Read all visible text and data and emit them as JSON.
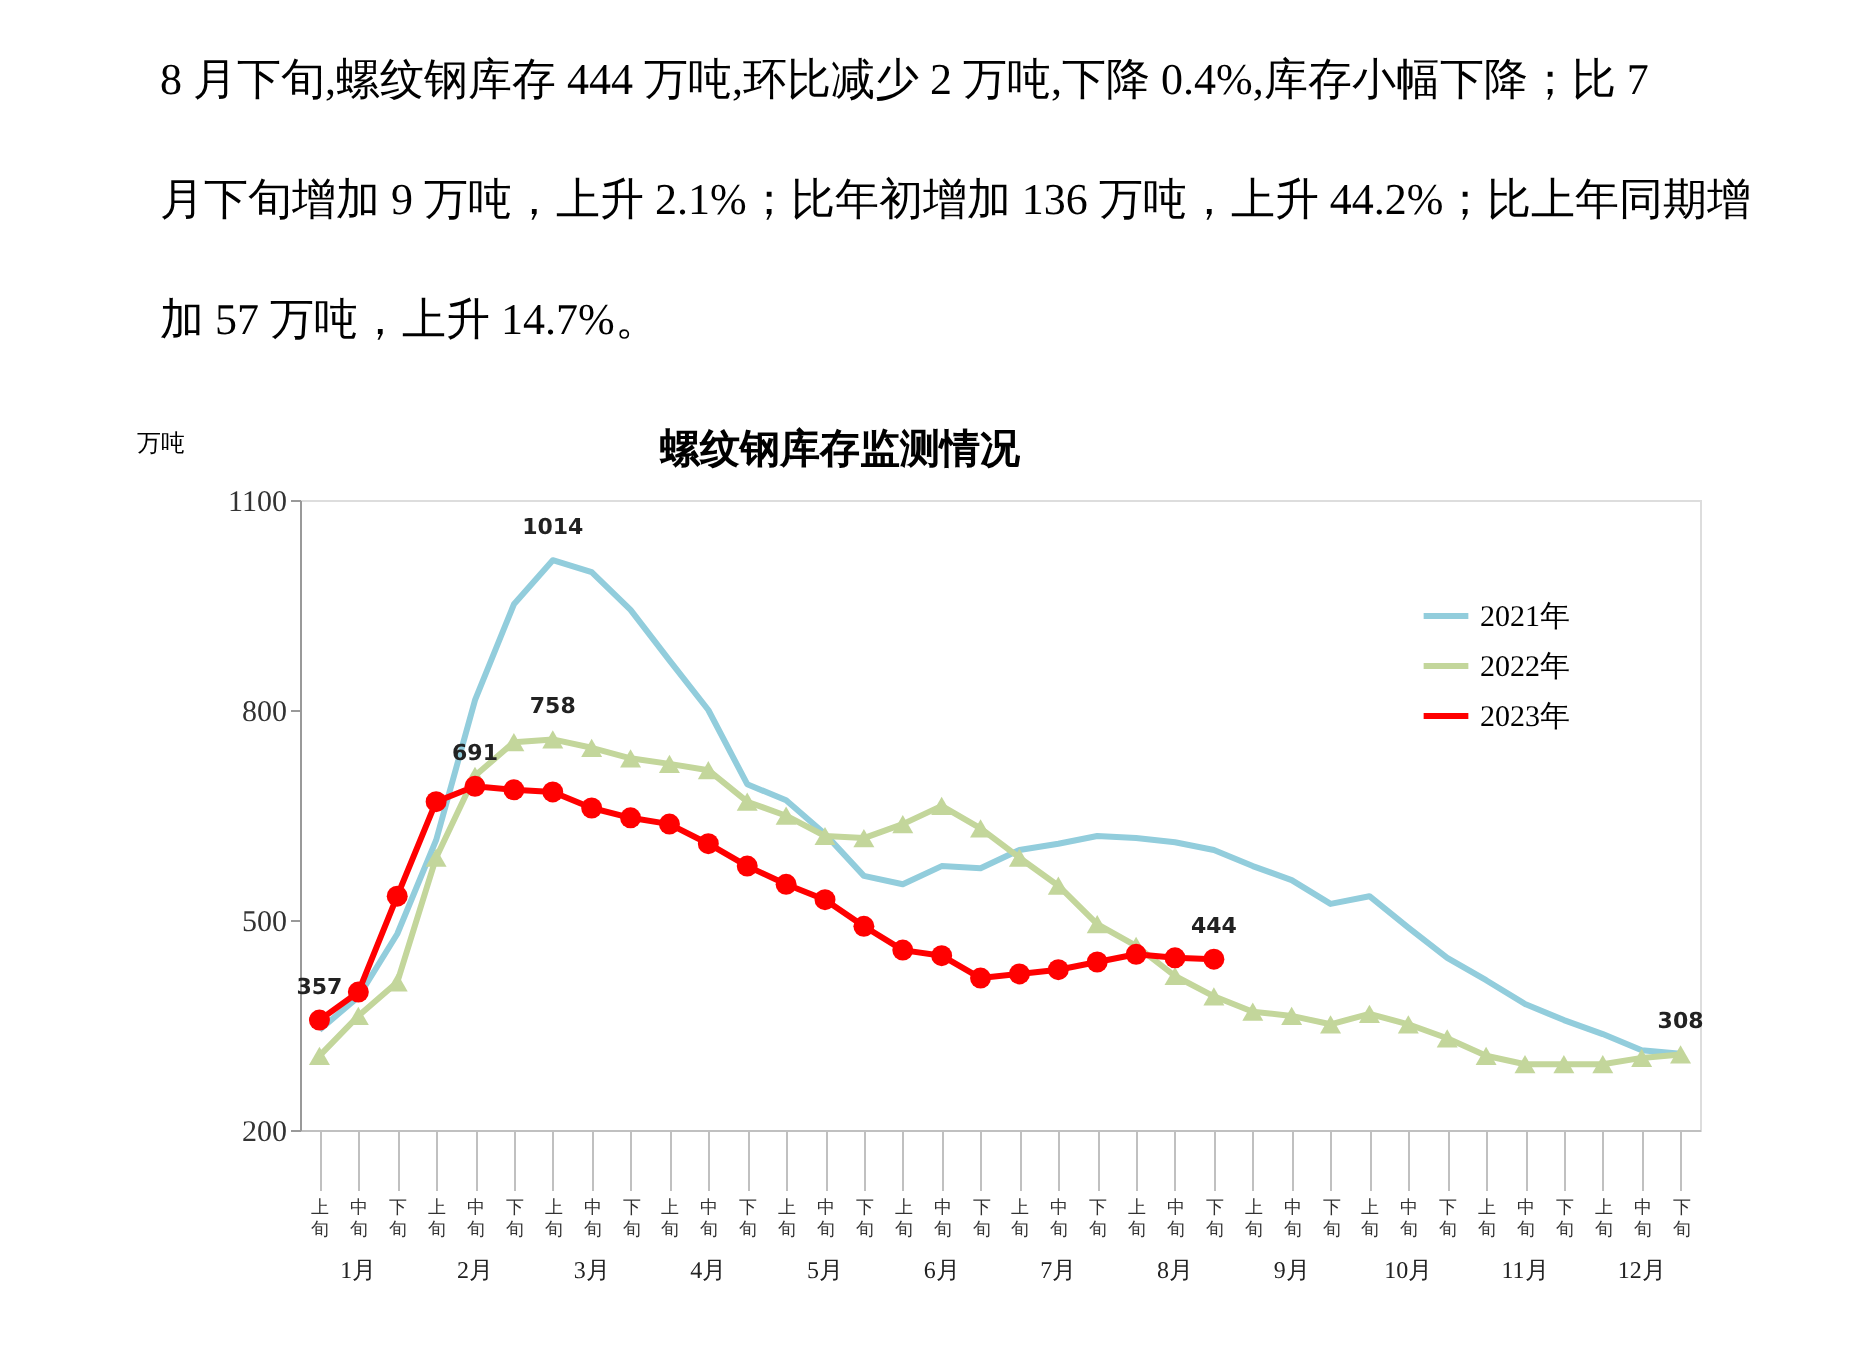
{
  "chart_data": {
    "type": "line",
    "title": "螺纹钢库存监测情况",
    "subtitle": "8 月下旬,螺纹钢库存 444 万吨,环比减少 2 万吨,下降 0.4%,库存小幅下降；比 7 月下旬增加 9 万吨，上升 2.1%；比年初增加 136 万吨，上升 44.2%；比上年同期增加 57 万吨，上升 14.7%。",
    "ylabel": "万吨",
    "categories": [
      "上旬",
      "中旬",
      "下旬",
      "上旬",
      "中旬",
      "下旬",
      "上旬",
      "中旬",
      "下旬",
      "上旬",
      "中旬",
      "下旬",
      "上旬",
      "中旬",
      "下旬",
      "上旬",
      "中旬",
      "下旬",
      "上旬",
      "中旬",
      "下旬",
      "上旬",
      "中旬",
      "下旬",
      "上旬",
      "中旬",
      "下旬",
      "上旬",
      "中旬",
      "下旬",
      "上旬",
      "中旬",
      "下旬",
      "上旬",
      "中旬",
      "下旬"
    ],
    "annotations": [
      "1月",
      "2月",
      "3月",
      "4月",
      "5月",
      "6月",
      "7月",
      "8月",
      "9月",
      "10月",
      "11月",
      "12月"
    ],
    "ylim": [
      200,
      1100
    ],
    "yticks": [
      200,
      500,
      800,
      1100
    ],
    "grid": false,
    "legend": "top right",
    "series": [
      {
        "name": "2021年",
        "color": "#92cddc",
        "marker": "none",
        "values": [
          343,
          390,
          480,
          614,
          814,
          951,
          1014,
          997,
          943,
          871,
          800,
          694,
          671,
          623,
          563,
          551,
          577,
          574,
          600,
          609,
          620,
          617,
          611,
          600,
          577,
          557,
          523,
          534,
          489,
          446,
          414,
          380,
          357,
          337,
          314,
          309
        ],
        "value_labels": [
          null,
          null,
          null,
          null,
          null,
          null,
          "1014",
          null,
          null,
          null,
          null,
          null,
          null,
          null,
          null,
          null,
          null,
          null,
          null,
          null,
          null,
          null,
          null,
          null,
          null,
          null,
          null,
          null,
          null,
          null,
          null,
          null,
          null,
          null,
          null,
          null
        ]
      },
      {
        "name": "2022年",
        "color": "#c3d69b",
        "marker": "triangle",
        "values": [
          306,
          363,
          411,
          589,
          706,
          754,
          758,
          746,
          731,
          723,
          714,
          669,
          649,
          620,
          617,
          637,
          663,
          631,
          589,
          549,
          494,
          463,
          420,
          391,
          369,
          363,
          351,
          366,
          351,
          331,
          306,
          294,
          294,
          294,
          303,
          308
        ],
        "value_labels": [
          null,
          null,
          null,
          null,
          null,
          null,
          "758",
          null,
          null,
          null,
          null,
          null,
          null,
          null,
          null,
          null,
          null,
          null,
          null,
          null,
          null,
          null,
          null,
          null,
          null,
          null,
          null,
          null,
          null,
          null,
          null,
          null,
          null,
          null,
          null,
          "308"
        ]
      },
      {
        "name": "2023年",
        "color": "#ff0000",
        "marker": "circle",
        "values": [
          357,
          397,
          534,
          669,
          691,
          686,
          683,
          660,
          646,
          637,
          609,
          577,
          551,
          529,
          491,
          457,
          449,
          417,
          423,
          429,
          440,
          451,
          446,
          444,
          null,
          null,
          null,
          null,
          null,
          null,
          null,
          null,
          null,
          null,
          null,
          null
        ],
        "value_labels": [
          "357",
          null,
          null,
          null,
          "691",
          null,
          null,
          null,
          null,
          null,
          null,
          null,
          null,
          null,
          null,
          null,
          null,
          null,
          null,
          null,
          null,
          null,
          null,
          "444",
          null,
          null,
          null,
          null,
          null,
          null,
          null,
          null,
          null,
          null,
          null,
          null
        ]
      }
    ]
  }
}
